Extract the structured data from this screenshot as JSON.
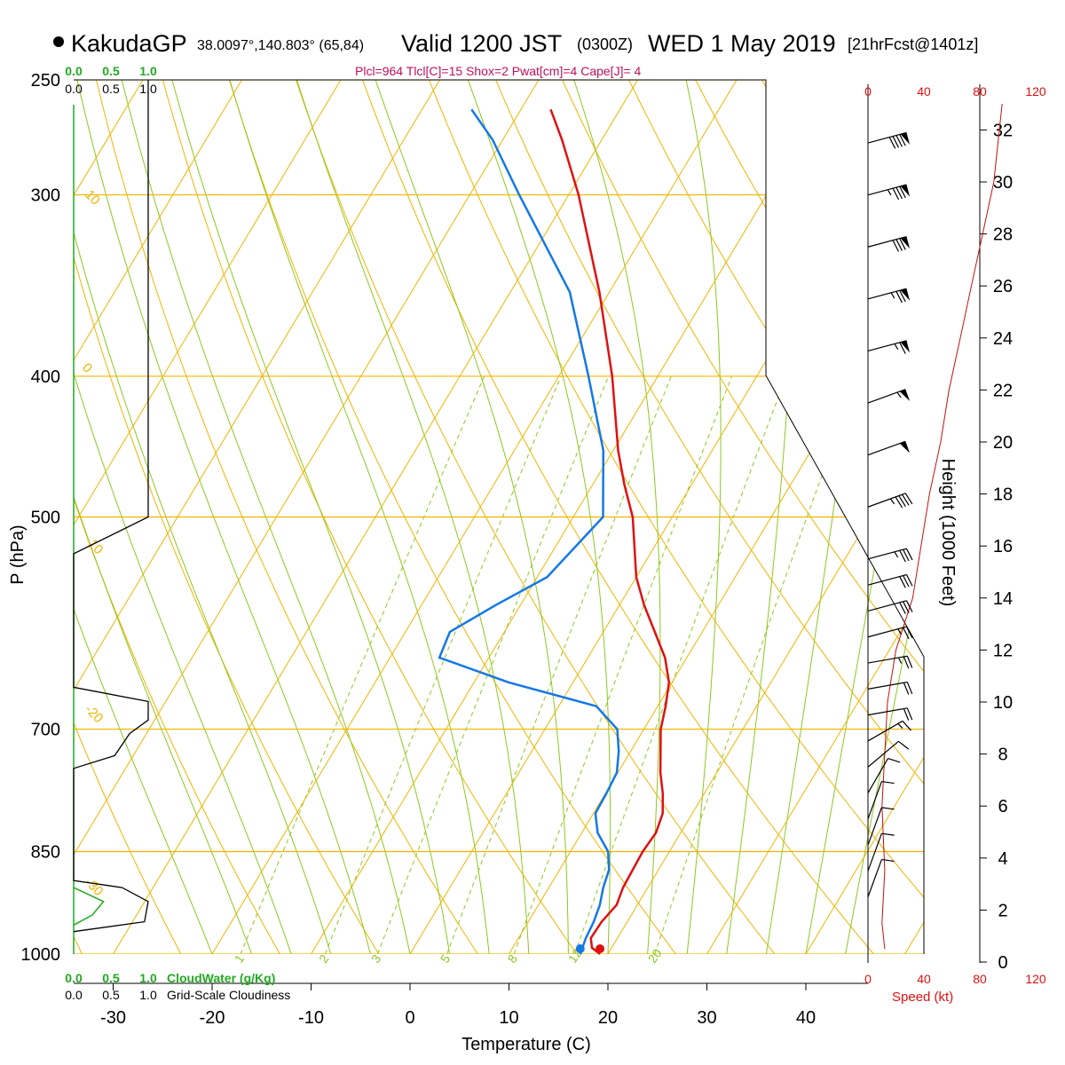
{
  "header": {
    "station": "KakudaGP",
    "coords": "38.0097°,140.803° (65,84)",
    "valid_main": "Valid 1200 JST",
    "valid_utc": "(0300Z)",
    "valid_date": "WED 1 May 2019",
    "forecast": "[21hrFcst@1401z]",
    "indices": "Plcl=964 Tlcl[C]=15 Shox=2 Pwat[cm]=4 Cape[J]= 4"
  },
  "colors": {
    "temperature": "#e01010",
    "dewpoint": "#1478e6",
    "isotherm": "#f0b400",
    "dry_adiabat": "#f0b400",
    "moist_adiabat": "#8cc81e",
    "mixing_ratio": "#8cc81e",
    "cloud_water": "#22aa22",
    "wind_profile": "#c01010"
  },
  "chart_data": {
    "type": "skew-t",
    "xlabel": "Temperature (C)",
    "ylabel": "P (hPa)",
    "y2label": "Height (1000 Feet)",
    "x_ticks": [
      -30,
      -20,
      -10,
      0,
      10,
      20,
      30,
      40
    ],
    "pressure_levels": [
      250,
      300,
      400,
      500,
      700,
      850,
      1000
    ],
    "height_ticks": [
      0,
      2,
      4,
      6,
      8,
      10,
      12,
      14,
      16,
      18,
      20,
      22,
      24,
      26,
      28,
      30,
      32
    ],
    "speed_ticks_top": [
      0,
      40,
      80,
      120
    ],
    "speed_ticks_bottom": [
      0,
      40,
      80,
      120
    ],
    "speed_label": "Speed (kt)",
    "cloud_water_ticks": [
      "0.0",
      "0.5",
      "1.0"
    ],
    "cloud_water_label": "CloudWater (g/Kg)",
    "cloudiness_ticks": [
      "0.0",
      "0.5",
      "1.0"
    ],
    "cloudiness_label": "Grid-Scale Cloudiness",
    "mixing_ratio_labels": [
      "1",
      "2",
      "3",
      "5",
      "8",
      "12",
      "20"
    ],
    "adiabat_labels": [
      "10",
      "0",
      "-10",
      "-20",
      "-30",
      "0",
      "10",
      "20",
      "30"
    ],
    "temperature": [
      {
        "p": 1000,
        "t": 19.2
      },
      {
        "p": 990,
        "t": 18.0
      },
      {
        "p": 975,
        "t": 17.3
      },
      {
        "p": 950,
        "t": 17.4
      },
      {
        "p": 925,
        "t": 17.9
      },
      {
        "p": 900,
        "t": 17.5
      },
      {
        "p": 875,
        "t": 17.4
      },
      {
        "p": 850,
        "t": 17.3
      },
      {
        "p": 825,
        "t": 17.5
      },
      {
        "p": 800,
        "t": 17.0
      },
      {
        "p": 775,
        "t": 15.8
      },
      {
        "p": 750,
        "t": 14.3
      },
      {
        "p": 700,
        "t": 11.7
      },
      {
        "p": 675,
        "t": 10.8
      },
      {
        "p": 650,
        "t": 9.7
      },
      {
        "p": 625,
        "t": 7.8
      },
      {
        "p": 600,
        "t": 5.2
      },
      {
        "p": 575,
        "t": 2.5
      },
      {
        "p": 550,
        "t": 0.0
      },
      {
        "p": 500,
        "t": -4.0
      },
      {
        "p": 475,
        "t": -6.8
      },
      {
        "p": 450,
        "t": -9.5
      },
      {
        "p": 400,
        "t": -14.6
      },
      {
        "p": 350,
        "t": -21.0
      },
      {
        "p": 300,
        "t": -29.0
      },
      {
        "p": 275,
        "t": -34.0
      },
      {
        "p": 262,
        "t": -37.0
      }
    ],
    "dewpoint": [
      {
        "p": 1000,
        "t": 17.2
      },
      {
        "p": 975,
        "t": 16.8
      },
      {
        "p": 950,
        "t": 16.6
      },
      {
        "p": 925,
        "t": 16.2
      },
      {
        "p": 900,
        "t": 15.5
      },
      {
        "p": 875,
        "t": 15.0
      },
      {
        "p": 850,
        "t": 13.8
      },
      {
        "p": 825,
        "t": 11.6
      },
      {
        "p": 800,
        "t": 10.2
      },
      {
        "p": 775,
        "t": 10.1
      },
      {
        "p": 750,
        "t": 9.9
      },
      {
        "p": 725,
        "t": 8.8
      },
      {
        "p": 700,
        "t": 7.3
      },
      {
        "p": 675,
        "t": 3.8
      },
      {
        "p": 650,
        "t": -6.5
      },
      {
        "p": 625,
        "t": -15.0
      },
      {
        "p": 600,
        "t": -15.5
      },
      {
        "p": 575,
        "t": -12.5
      },
      {
        "p": 550,
        "t": -9.0
      },
      {
        "p": 500,
        "t": -7.0
      },
      {
        "p": 450,
        "t": -11.0
      },
      {
        "p": 400,
        "t": -17.0
      },
      {
        "p": 350,
        "t": -24.0
      },
      {
        "p": 300,
        "t": -35.0
      },
      {
        "p": 275,
        "t": -41.0
      },
      {
        "p": 262,
        "t": -45.0
      }
    ],
    "cloudiness_profile": [
      {
        "p": 250,
        "v": 1.0
      },
      {
        "p": 500,
        "v": 1.0
      },
      {
        "p": 530,
        "v": 0.0
      },
      {
        "p": 655,
        "v": 0.0
      },
      {
        "p": 670,
        "v": 1.0
      },
      {
        "p": 690,
        "v": 1.0
      },
      {
        "p": 705,
        "v": 0.75
      },
      {
        "p": 730,
        "v": 0.55
      },
      {
        "p": 745,
        "v": 0.0
      },
      {
        "p": 890,
        "v": 0.0
      },
      {
        "p": 900,
        "v": 0.65
      },
      {
        "p": 920,
        "v": 1.0
      },
      {
        "p": 950,
        "v": 0.95
      },
      {
        "p": 965,
        "v": 0.0
      }
    ],
    "cloud_water_profile": [
      {
        "p": 900,
        "v": 0.0
      },
      {
        "p": 920,
        "v": 0.4
      },
      {
        "p": 940,
        "v": 0.25
      },
      {
        "p": 955,
        "v": 0.0
      }
    ],
    "wind_barbs": [
      {
        "h": 31.5,
        "speed": 90,
        "dir": 255
      },
      {
        "h": 29.5,
        "speed": 85,
        "dir": 255
      },
      {
        "h": 27.5,
        "speed": 80,
        "dir": 255
      },
      {
        "h": 25.5,
        "speed": 75,
        "dir": 255
      },
      {
        "h": 23.5,
        "speed": 65,
        "dir": 255
      },
      {
        "h": 21.5,
        "speed": 55,
        "dir": 250
      },
      {
        "h": 19.5,
        "speed": 50,
        "dir": 250
      },
      {
        "h": 17.5,
        "speed": 45,
        "dir": 250
      },
      {
        "h": 15.5,
        "speed": 35,
        "dir": 255
      },
      {
        "h": 14.5,
        "speed": 30,
        "dir": 255
      },
      {
        "h": 13.5,
        "speed": 30,
        "dir": 255
      },
      {
        "h": 12.5,
        "speed": 25,
        "dir": 255
      },
      {
        "h": 11.5,
        "speed": 25,
        "dir": 260
      },
      {
        "h": 10.5,
        "speed": 20,
        "dir": 260
      },
      {
        "h": 9.5,
        "speed": 20,
        "dir": 260
      },
      {
        "h": 8.5,
        "speed": 15,
        "dir": 240
      },
      {
        "h": 7.5,
        "speed": 10,
        "dir": 230
      },
      {
        "h": 6.5,
        "speed": 10,
        "dir": 210
      },
      {
        "h": 5.5,
        "speed": 10,
        "dir": 200
      },
      {
        "h": 4.5,
        "speed": 10,
        "dir": 200
      },
      {
        "h": 3.5,
        "speed": 10,
        "dir": 200
      },
      {
        "h": 2.5,
        "speed": 10,
        "dir": 200
      }
    ],
    "wind_speed_profile": [
      {
        "h": 0.5,
        "s": 12
      },
      {
        "h": 1.5,
        "s": 10
      },
      {
        "h": 3.5,
        "s": 12
      },
      {
        "h": 6,
        "s": 10
      },
      {
        "h": 8,
        "s": 12
      },
      {
        "h": 10,
        "s": 14
      },
      {
        "h": 12,
        "s": 20
      },
      {
        "h": 14,
        "s": 32
      },
      {
        "h": 16,
        "s": 38
      },
      {
        "h": 18,
        "s": 44
      },
      {
        "h": 20,
        "s": 52
      },
      {
        "h": 22,
        "s": 58
      },
      {
        "h": 24,
        "s": 66
      },
      {
        "h": 26,
        "s": 74
      },
      {
        "h": 28,
        "s": 82
      },
      {
        "h": 30,
        "s": 90
      },
      {
        "h": 32,
        "s": 94
      },
      {
        "h": 33,
        "s": 96
      }
    ]
  }
}
